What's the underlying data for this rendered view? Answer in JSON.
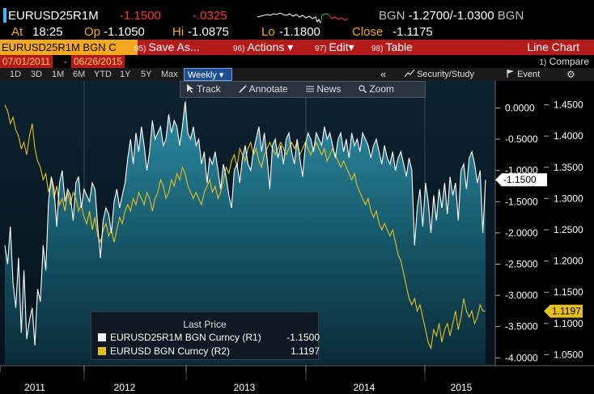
{
  "ticker": {
    "name": "EURUSD25R1M",
    "last": "-1.1500",
    "change": "-.0325",
    "bid_ask_prefix": "BGN",
    "bid": "-1.2700",
    "ask": "/-1.0300",
    "bid_ask_suffix": "BGN"
  },
  "quote": {
    "at_label": "At",
    "time": "18:25",
    "open_label": "Op",
    "open": "-1.1050",
    "high_label": "Hi",
    "high": "-1.0875",
    "low_label": "Lo",
    "low": "-1.1800",
    "close_label": "Close",
    "close": "-1.1175"
  },
  "menu": {
    "date_tab": "EURUSD25R1M BGN C",
    "items": [
      {
        "num": "95)",
        "label": "Save As..."
      },
      {
        "num": "96)",
        "label": "Actions ▾"
      },
      {
        "num": "97)",
        "label": "Edit▾"
      },
      {
        "num": "98)",
        "label": "Table"
      }
    ],
    "chart_type": "Line Chart"
  },
  "date_range": {
    "from": "07/01/2011",
    "dash": "-",
    "to": "06/26/2015",
    "compare_num": "1)",
    "compare_label": "Compare"
  },
  "toolbar": {
    "periods": [
      "1D",
      "3D",
      "1M",
      "6M",
      "YTD",
      "1Y",
      "5Y",
      "Max"
    ],
    "frequency": "Weekly ▾",
    "collapse": "«",
    "security_study": "Security/Study",
    "event": "Event",
    "gear": "⚙"
  },
  "chart_tools": {
    "track": "Track",
    "annotate": "Annotate",
    "news": "News",
    "zoom": "Zoom"
  },
  "legend": {
    "title": "Last Price",
    "rows": [
      {
        "label": "EURUSD25R1M BGN Curncy  (R1)",
        "value": "-1.1500",
        "color": "#ffffff"
      },
      {
        "label": "EURUSD BGN Curncy  (R2)",
        "value": "1.1197",
        "color": "#e5c01c"
      }
    ]
  },
  "chart_data": {
    "type": "line",
    "x_labels": [
      "2011",
      "2012",
      "2013",
      "2014",
      "2015"
    ],
    "y_axis_r1": {
      "ticks": [
        "0.0000",
        "-0.5000",
        "-1.0000",
        "-1.5000",
        "-2.0000",
        "-2.5000",
        "-3.0000",
        "-3.5000",
        "-4.0000"
      ],
      "range": [
        -4.1,
        0.2
      ],
      "last_label": "-1.1500"
    },
    "y_axis_r2": {
      "ticks": [
        "1.4500",
        "1.4000",
        "1.3500",
        "1.3000",
        "1.2500",
        "1.2000",
        "1.1500",
        "1.1000",
        "1.0500"
      ],
      "range": [
        1.035,
        1.465
      ],
      "last_label": "1.1197"
    },
    "series": [
      {
        "name": "EURUSD25R1M BGN Curncy  (R1)",
        "color": "#ffffff",
        "values": [
          -2.2,
          -2.5,
          -1.9,
          -2.8,
          -3.2,
          -2.4,
          -3.6,
          -2.6,
          -3.7,
          -3.4,
          -3.2,
          -3.8,
          -2.9,
          -3.1,
          -2.2,
          -2.6,
          -1.5,
          -1.1,
          -1.3,
          -1.9,
          -1.2,
          -1.0,
          -1.5,
          -1.3,
          -1.4,
          -1.8,
          -1.2,
          -1.1,
          -1.6,
          -1.3,
          -1.4,
          -1.5,
          -1.2,
          -1.3,
          -1.9,
          -2.4,
          -1.8,
          -1.6,
          -1.7,
          -2.0,
          -1.5,
          -1.3,
          -1.6,
          -1.4,
          -1.2,
          -0.8,
          -0.5,
          -0.9,
          -0.4,
          -0.7,
          -0.3,
          -0.6,
          -1.0,
          -0.7,
          -0.2,
          -0.5,
          -0.4,
          -0.3,
          -0.6,
          -0.5,
          -0.1,
          -0.4,
          -0.2,
          -0.3,
          -0.6,
          -0.3,
          0.1,
          -0.4,
          -0.5,
          -0.3,
          -0.6,
          -0.5,
          -0.9,
          -0.7,
          -1.2,
          -0.8,
          -0.9,
          -0.7,
          -1.0,
          -1.3,
          -0.9,
          -1.1,
          -1.4,
          -1.6,
          -1.0,
          -0.9,
          -1.2,
          -0.8,
          -0.6,
          -0.9,
          -1.0,
          -0.7,
          -0.5,
          -0.3,
          -0.7,
          -0.4,
          -0.8,
          -1.3,
          -0.6,
          -0.5,
          -0.8,
          -0.6,
          -0.9,
          -0.5,
          -0.4,
          -0.7,
          -0.9,
          -0.5,
          -0.8,
          -1.1,
          -0.6,
          -0.4,
          -0.5,
          -0.7,
          -0.4,
          -0.5,
          -0.6,
          -0.3,
          -0.5,
          -0.4,
          -0.6,
          -0.8,
          -0.5,
          -0.4,
          -0.7,
          -0.5,
          -0.8,
          -0.4,
          -0.6,
          -0.5,
          -0.7,
          -0.4,
          -0.5,
          -0.6,
          -0.8,
          -0.6,
          -0.5,
          -0.7,
          -0.9,
          -0.6,
          -0.8,
          -0.9,
          -0.7,
          -1.0,
          -0.8,
          -0.7,
          -0.9,
          -1.1,
          -0.8,
          -1.0,
          -2.2,
          -1.6,
          -1.3,
          -1.9,
          -1.2,
          -1.5,
          -2.0,
          -1.4,
          -1.8,
          -1.3,
          -1.6,
          -1.2,
          -1.7,
          -1.1,
          -1.4,
          -1.2,
          -1.8,
          -1.0,
          -0.9,
          -1.3,
          -0.8,
          -0.7,
          -0.9,
          -1.2,
          -1.0,
          -2.0,
          -1.15
        ],
        "ylim": [
          -4.1,
          0.2
        ]
      },
      {
        "name": "EURUSD BGN Curncy  (R2)",
        "color": "#e5c01c",
        "values": [
          1.45,
          1.44,
          1.42,
          1.43,
          1.41,
          1.4,
          1.38,
          1.39,
          1.37,
          1.4,
          1.42,
          1.38,
          1.36,
          1.35,
          1.33,
          1.34,
          1.31,
          1.33,
          1.3,
          1.32,
          1.29,
          1.3,
          1.28,
          1.31,
          1.29,
          1.31,
          1.3,
          1.28,
          1.29,
          1.27,
          1.26,
          1.28,
          1.25,
          1.27,
          1.24,
          1.23,
          1.25,
          1.26,
          1.24,
          1.25,
          1.23,
          1.25,
          1.27,
          1.26,
          1.28,
          1.29,
          1.28,
          1.3,
          1.29,
          1.31,
          1.3,
          1.29,
          1.31,
          1.3,
          1.28,
          1.3,
          1.31,
          1.33,
          1.32,
          1.3,
          1.31,
          1.33,
          1.32,
          1.34,
          1.33,
          1.35,
          1.34,
          1.32,
          1.31,
          1.3,
          1.31,
          1.3,
          1.29,
          1.31,
          1.32,
          1.33,
          1.31,
          1.32,
          1.3,
          1.31,
          1.33,
          1.35,
          1.34,
          1.36,
          1.37,
          1.35,
          1.38,
          1.37,
          1.36,
          1.38,
          1.39,
          1.37,
          1.38,
          1.36,
          1.35,
          1.37,
          1.38,
          1.39,
          1.38,
          1.37,
          1.38,
          1.39,
          1.38,
          1.37,
          1.38,
          1.39,
          1.38,
          1.39,
          1.37,
          1.38,
          1.39,
          1.38,
          1.37,
          1.38,
          1.39,
          1.38,
          1.37,
          1.38,
          1.36,
          1.37,
          1.38,
          1.37,
          1.36,
          1.35,
          1.36,
          1.35,
          1.34,
          1.33,
          1.34,
          1.32,
          1.31,
          1.3,
          1.29,
          1.3,
          1.28,
          1.27,
          1.28,
          1.26,
          1.25,
          1.26,
          1.25,
          1.24,
          1.25,
          1.23,
          1.21,
          1.2,
          1.18,
          1.16,
          1.14,
          1.13,
          1.14,
          1.12,
          1.13,
          1.11,
          1.09,
          1.07,
          1.06,
          1.09,
          1.08,
          1.1,
          1.07,
          1.09,
          1.1,
          1.08,
          1.1,
          1.12,
          1.09,
          1.11,
          1.14,
          1.12,
          1.11,
          1.12,
          1.1,
          1.11,
          1.13,
          1.12,
          1.1197
        ],
        "ylim": [
          1.035,
          1.465
        ]
      }
    ],
    "grid": true,
    "legend_position": "bottom-left"
  }
}
